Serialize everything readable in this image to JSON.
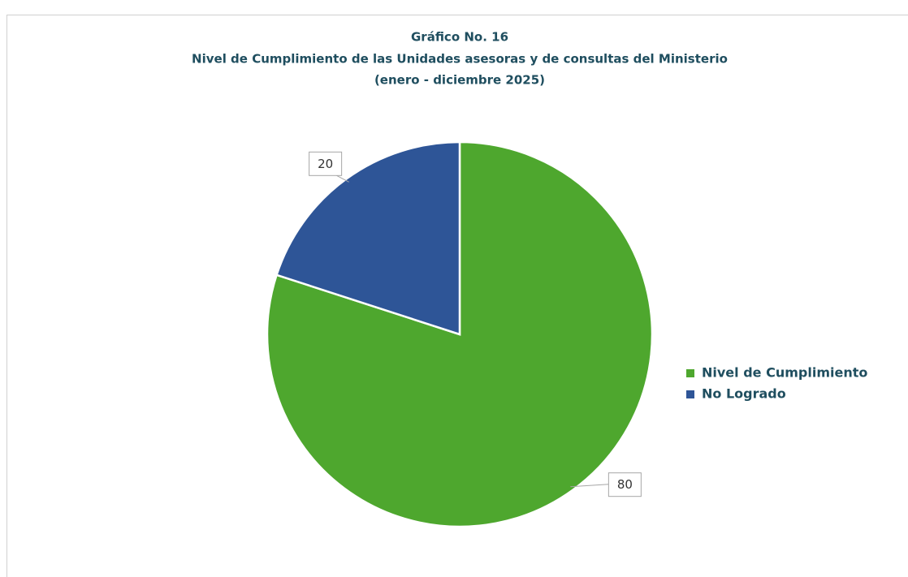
{
  "chart_data": {
    "type": "pie",
    "title": [
      "Gráfico No. 16",
      "Nivel de Cumplimiento de las Unidades asesoras y de consultas del Ministerio",
      "(enero - diciembre 2025)"
    ],
    "categories": [
      "Nivel de Cumplimiento",
      "No Logrado"
    ],
    "values": [
      80,
      20
    ],
    "colors": [
      "#4ea72e",
      "#2e5597"
    ],
    "legend": "right"
  }
}
